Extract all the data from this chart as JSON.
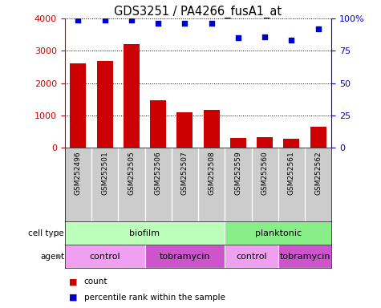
{
  "title": "GDS3251 / PA4266_fusA1_at",
  "samples": [
    "GSM252496",
    "GSM252501",
    "GSM252505",
    "GSM252506",
    "GSM252507",
    "GSM252508",
    "GSM252559",
    "GSM252560",
    "GSM252561",
    "GSM252562"
  ],
  "counts": [
    2600,
    2680,
    3200,
    1470,
    1100,
    1180,
    310,
    340,
    290,
    650
  ],
  "percentiles": [
    99,
    99,
    99,
    96,
    96,
    96,
    85,
    86,
    83,
    92
  ],
  "bar_color": "#cc0000",
  "dot_color": "#0000cc",
  "ylim_left": [
    0,
    4000
  ],
  "ylim_right": [
    0,
    100
  ],
  "yticks_left": [
    0,
    1000,
    2000,
    3000,
    4000
  ],
  "yticks_right": [
    0,
    25,
    50,
    75,
    100
  ],
  "cell_type_labels": [
    {
      "label": "biofilm",
      "start": 0,
      "end": 5,
      "color": "#bbffbb"
    },
    {
      "label": "planktonic",
      "start": 6,
      "end": 9,
      "color": "#88ee88"
    }
  ],
  "agent_labels": [
    {
      "label": "control",
      "start": 0,
      "end": 2,
      "color": "#f0a0f0"
    },
    {
      "label": "tobramycin",
      "start": 3,
      "end": 5,
      "color": "#cc55cc"
    },
    {
      "label": "control",
      "start": 6,
      "end": 7,
      "color": "#f0a0f0"
    },
    {
      "label": "tobramycin",
      "start": 8,
      "end": 9,
      "color": "#cc55cc"
    }
  ],
  "sample_bg_color": "#cccccc",
  "legend_count_color": "#cc0000",
  "legend_pct_color": "#0000cc",
  "tick_label_color_left": "#cc0000",
  "tick_label_color_right": "#0000cc",
  "left_label_color": "#888888"
}
